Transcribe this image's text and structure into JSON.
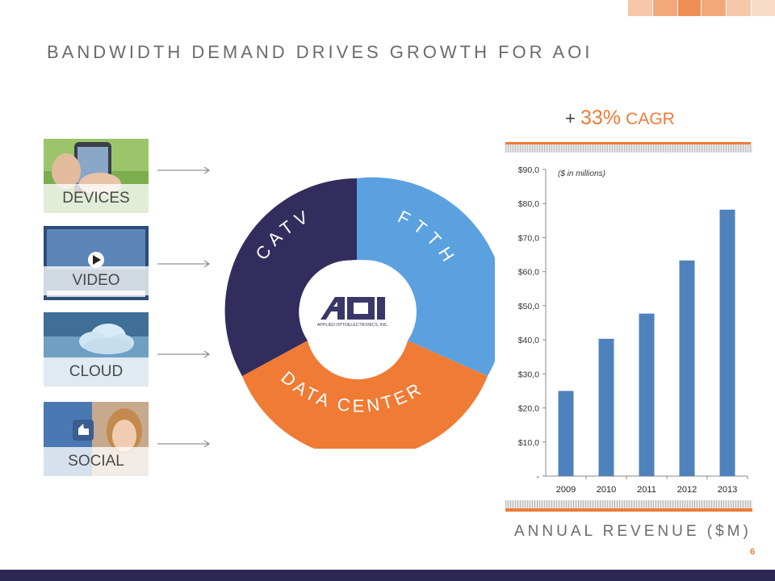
{
  "page": {
    "title": "BANDWIDTH DEMAND DRIVES GROWTH FOR AOI",
    "page_number": "6"
  },
  "drivers": [
    {
      "label": "DEVICES",
      "icon": "touchscreen-phone-photo"
    },
    {
      "label": "VIDEO",
      "icon": "video-player-photo"
    },
    {
      "label": "CLOUD",
      "icon": "cloud-photo"
    },
    {
      "label": "SOCIAL",
      "icon": "social-thumbs-up-photo"
    }
  ],
  "donut": {
    "segments": [
      {
        "label": "FTTH",
        "color": "#5ba1e0"
      },
      {
        "label": "DATA CENTER",
        "color": "#ef7b35"
      },
      {
        "label": "CATV",
        "color": "#322d5c"
      }
    ],
    "logo_text": "AOI",
    "logo_subtitle": "APPLIED OPTOELECTRONICS, INC."
  },
  "cagr": {
    "plus": "+",
    "value": "33%",
    "label": "CAGR"
  },
  "revenue_label": "ANNUAL REVENUE ($M)",
  "colors": {
    "accent": "#ef7b35",
    "bar": "#4f81bd",
    "navy": "#2b2752",
    "blue": "#5ba1e0"
  },
  "chart_data": {
    "type": "bar",
    "categories": [
      "2009",
      "2010",
      "2011",
      "2012",
      "2013"
    ],
    "values": [
      25,
      40.3,
      47.7,
      63.3,
      78.2
    ],
    "annotation": "($ in millions)",
    "ylim": [
      0,
      90
    ],
    "yticks": [
      0,
      10,
      20,
      30,
      40,
      50,
      60,
      70,
      80,
      90
    ],
    "ytick_labels": [
      "-",
      "$10,0",
      "$20,0",
      "$30,0",
      "$40,0",
      "$50,0",
      "$60,0",
      "$70,0",
      "$80,0",
      "$90,0"
    ],
    "grid": false,
    "legend": "none"
  }
}
